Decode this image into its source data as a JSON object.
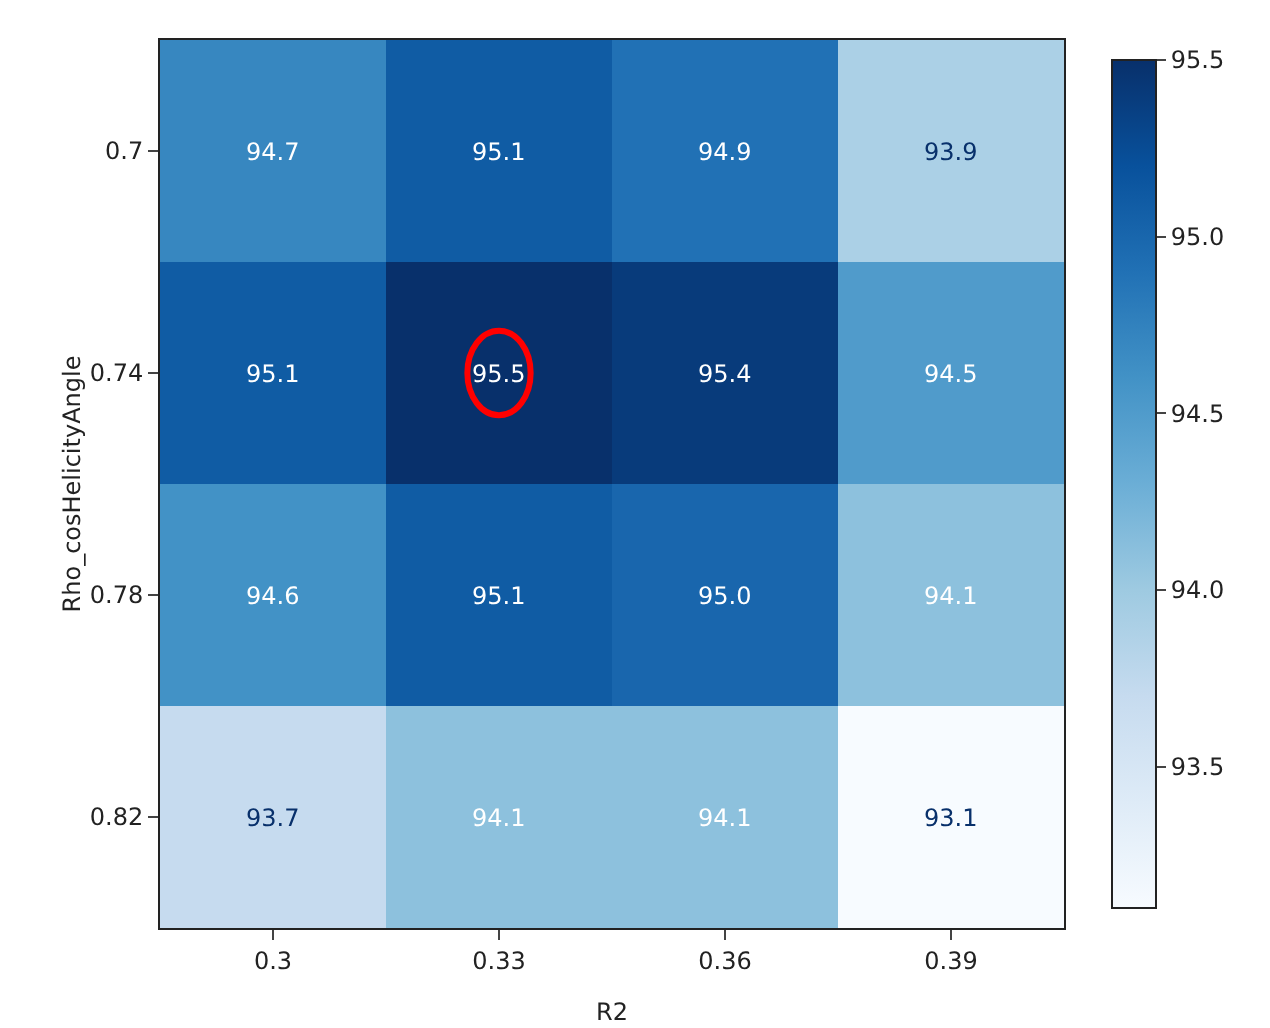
{
  "chart_data": {
    "type": "heatmap",
    "xlabel": "R2",
    "ylabel": "Rho_cosHelicityAngle",
    "categories": [
      "0.3",
      "0.33",
      "0.36",
      "0.39"
    ],
    "y_categories": [
      "0.7",
      "0.74",
      "0.78",
      "0.82"
    ],
    "cells": [
      [
        94.7,
        95.1,
        94.9,
        93.9
      ],
      [
        95.1,
        95.5,
        95.4,
        94.5
      ],
      [
        94.6,
        95.1,
        95.0,
        94.1
      ],
      [
        93.7,
        94.1,
        94.1,
        93.1
      ]
    ],
    "cell_labels": [
      [
        "94.7",
        "95.1",
        "94.9",
        "93.9"
      ],
      [
        "95.1",
        "95.5",
        "95.4",
        "94.5"
      ],
      [
        "94.6",
        "95.1",
        "95.0",
        "94.1"
      ],
      [
        "93.7",
        "94.1",
        "94.1",
        "93.1"
      ]
    ],
    "clim": [
      93.1,
      95.5
    ],
    "cticks": [
      {
        "value": 93.5,
        "label": "93.5"
      },
      {
        "value": 94,
        "label": "94.0"
      },
      {
        "value": 94.5,
        "label": "94.5"
      },
      {
        "value": 95,
        "label": "95.0"
      },
      {
        "value": 95.5,
        "label": "95.5"
      }
    ]
  }
}
